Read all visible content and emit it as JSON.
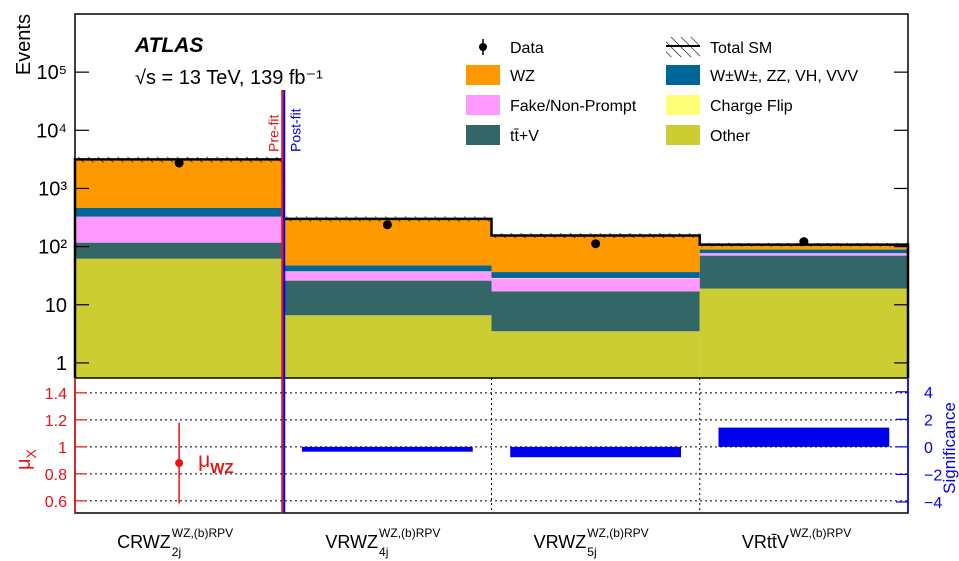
{
  "chart_data": {
    "type": "bar",
    "log_y": true,
    "experiment": "ATLAS",
    "energy_label": "√s = 13 TeV, 139 fb⁻¹",
    "ylabel": "Events",
    "ylim": [
      0.55,
      1000000
    ],
    "yticks": [
      {
        "value": 1,
        "label": "1"
      },
      {
        "value": 10,
        "label": "10"
      },
      {
        "value": 100,
        "label": "10²"
      },
      {
        "value": 1000,
        "label": "10³"
      },
      {
        "value": 10000,
        "label": "10⁴"
      },
      {
        "value": 100000,
        "label": "10⁵"
      }
    ],
    "categories": [
      {
        "text": "CRWZ",
        "sub": "2j",
        "sup": "WZ,(b)RPV"
      },
      {
        "text": "VRWZ",
        "sub": "4j",
        "sup": "WZ,(b)RPV"
      },
      {
        "text": "VRWZ",
        "sub": "5j",
        "sup": "WZ,(b)RPV"
      },
      {
        "text": "VRtt̄V",
        "sub": "",
        "sup": "WZ,(b)RPV"
      }
    ],
    "series": [
      {
        "name": "Other",
        "color": "#cccc33",
        "values": [
          62,
          6.6,
          3.5,
          19
        ]
      },
      {
        "name": "tt̄+V",
        "color": "#336666",
        "values": [
          55,
          19.4,
          13.5,
          51
        ]
      },
      {
        "name": "Fake/Non-Prompt",
        "color": "#ff99ff",
        "values": [
          208,
          11,
          11.4,
          6
        ]
      },
      {
        "name": "Charge Flip",
        "color": "#ffff77",
        "values": [
          2,
          0.5,
          0.5,
          1
        ]
      },
      {
        "name": "W±W±, ZZ, VH, VVV",
        "color": "#006699",
        "values": [
          138,
          10,
          7.6,
          12
        ]
      },
      {
        "name": "WZ",
        "color": "#ff9900",
        "values": [
          2700,
          253,
          119,
          19
        ]
      }
    ],
    "data": {
      "name": "Data",
      "color": "#000000",
      "values": [
        2740,
        237,
        112,
        122
      ]
    },
    "total": {
      "name": "Total SM",
      "uncertainty": [
        350,
        30,
        15,
        8
      ]
    },
    "annotations": {
      "prefit": "Pre-fit",
      "postfit": "Post-fit"
    },
    "ratio_panel": {
      "ylabel": {
        "text": "μ",
        "sub": "X"
      },
      "ylim": [
        0.51,
        1.51
      ],
      "yticks": [
        0.6,
        0.8,
        1,
        1.2,
        1.4
      ],
      "color": "#ee1111",
      "grid": true,
      "mu": {
        "label": {
          "text": "μ",
          "sub": "WZ"
        },
        "values": [
          0.88,
          null,
          null,
          null
        ],
        "errors": [
          0.3,
          null,
          null,
          null
        ]
      },
      "y2label": "Significance",
      "y2lim": [
        -4.8,
        5.0
      ],
      "y2ticks": [
        {
          "value": -4,
          "label": "−4"
        },
        {
          "value": -2,
          "label": "−2"
        },
        0,
        2,
        4
      ],
      "y2color": "#0000ee",
      "significance": {
        "axis": "y2",
        "values": [
          null,
          -0.35,
          -0.75,
          1.4
        ]
      }
    }
  }
}
